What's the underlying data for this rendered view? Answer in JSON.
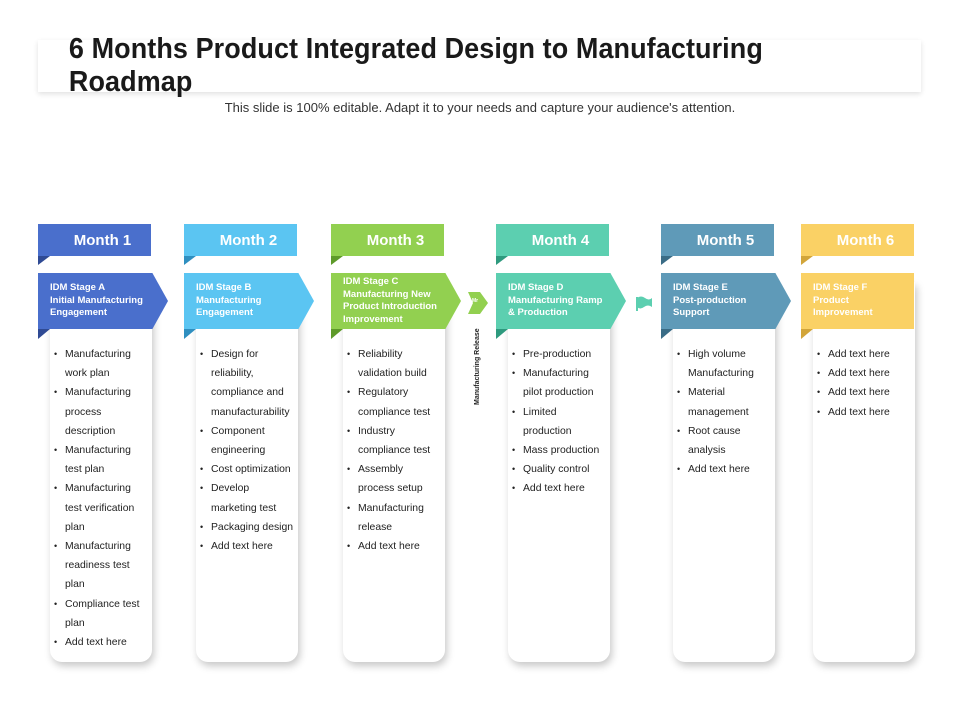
{
  "title": "6 Months Product Integrated Design to Manufacturing Roadmap",
  "subtitle": "This slide is 100% editable. Adapt it to your needs and capture your audience's attention.",
  "milestone": {
    "label": "Manufacturing Release",
    "arrow_text": "Mr"
  },
  "months": [
    {
      "label": "Month 1",
      "color": "#4a6fcc",
      "dark": "#2f4a94",
      "stage_lines": [
        "IDM Stage A",
        "Initial Manufacturing",
        "Engagement"
      ],
      "items": [
        "Manufacturing work plan",
        "Manufacturing process description",
        "Manufacturing test plan",
        "Manufacturing test verification plan",
        "Manufacturing readiness test plan",
        "Compliance test plan",
        "Add text here"
      ]
    },
    {
      "label": "Month 2",
      "color": "#5bc5f2",
      "dark": "#2f8fc0",
      "stage_lines": [
        "IDM Stage B",
        "Manufacturing",
        "Engagement"
      ],
      "items": [
        "Design for reliability, compliance and manufacturability",
        "Component engineering",
        "Cost optimization",
        "Develop marketing test",
        "Packaging design",
        "Add text here"
      ]
    },
    {
      "label": "Month 3",
      "color": "#92d050",
      "dark": "#5e9a2a",
      "stage_lines": [
        "IDM Stage C",
        "Manufacturing New",
        "Product Introduction",
        "Improvement"
      ],
      "items": [
        "Reliability validation build",
        "Regulatory compliance test",
        "Industry compliance test",
        "Assembly process setup",
        "Manufacturing release",
        "Add text here"
      ]
    },
    {
      "label": "Month 4",
      "color": "#5ccfb0",
      "dark": "#2e9a7e",
      "stage_lines": [
        "IDM Stage D",
        "Manufacturing Ramp",
        "& Production"
      ],
      "items": [
        "Pre-production",
        "Manufacturing pilot production",
        "Limited production",
        "Mass production",
        "Quality control",
        "Add text here"
      ]
    },
    {
      "label": "Month 5",
      "color": "#5f9ab8",
      "dark": "#3a6c86",
      "stage_lines": [
        "IDM Stage E",
        "Post-production",
        "Support"
      ],
      "items": [
        "High volume Manufacturing",
        "Material management",
        "Root cause analysis",
        "Add text here"
      ]
    },
    {
      "label": "Month 6",
      "color": "#fad165",
      "dark": "#d2a53a",
      "stage_lines": [
        "IDM Stage F",
        "Product",
        "Improvement"
      ],
      "items": [
        "Add text here",
        "Add text here",
        "Add text here",
        "Add text here"
      ]
    }
  ]
}
